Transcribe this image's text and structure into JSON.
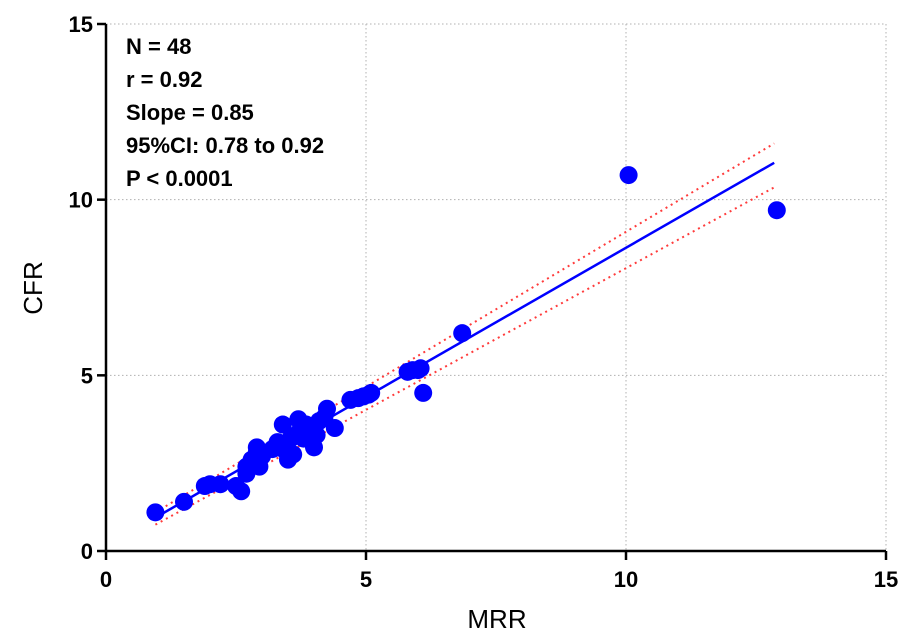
{
  "chart_data": {
    "type": "scatter",
    "xlabel": "MRR",
    "ylabel": "CFR",
    "xlim": [
      0,
      15
    ],
    "ylim": [
      0,
      15
    ],
    "x_ticks": [
      0,
      5,
      10,
      15
    ],
    "y_ticks": [
      0,
      5,
      10,
      15
    ],
    "grid": true,
    "annotations": [
      "N = 48",
      "r = 0.92",
      "Slope = 0.85",
      "95%CI: 0.78 to 0.92",
      "P < 0.0001"
    ],
    "points": [
      [
        0.95,
        1.1
      ],
      [
        1.5,
        1.4
      ],
      [
        1.9,
        1.85
      ],
      [
        2.0,
        1.9
      ],
      [
        2.2,
        1.9
      ],
      [
        2.5,
        1.85
      ],
      [
        2.6,
        1.7
      ],
      [
        2.7,
        2.2
      ],
      [
        2.7,
        2.4
      ],
      [
        2.8,
        2.6
      ],
      [
        2.85,
        2.5
      ],
      [
        2.9,
        2.8
      ],
      [
        2.9,
        2.95
      ],
      [
        2.95,
        2.4
      ],
      [
        3.0,
        2.7
      ],
      [
        3.2,
        2.9
      ],
      [
        3.3,
        3.1
      ],
      [
        3.35,
        3.0
      ],
      [
        3.4,
        3.6
      ],
      [
        3.45,
        2.85
      ],
      [
        3.5,
        2.6
      ],
      [
        3.55,
        3.2
      ],
      [
        3.6,
        2.75
      ],
      [
        3.65,
        3.3
      ],
      [
        3.7,
        3.75
      ],
      [
        3.75,
        3.5
      ],
      [
        3.8,
        3.2
      ],
      [
        3.85,
        3.6
      ],
      [
        3.9,
        3.4
      ],
      [
        4.0,
        2.95
      ],
      [
        4.05,
        3.3
      ],
      [
        4.1,
        3.7
      ],
      [
        4.2,
        3.8
      ],
      [
        4.25,
        4.05
      ],
      [
        4.4,
        3.5
      ],
      [
        4.7,
        4.3
      ],
      [
        4.85,
        4.35
      ],
      [
        4.95,
        4.4
      ],
      [
        5.05,
        4.45
      ],
      [
        5.1,
        4.5
      ],
      [
        5.8,
        5.1
      ],
      [
        5.9,
        5.15
      ],
      [
        6.0,
        5.15
      ],
      [
        6.05,
        5.2
      ],
      [
        6.1,
        4.5
      ],
      [
        6.85,
        6.2
      ],
      [
        10.05,
        10.7
      ],
      [
        12.9,
        9.7
      ]
    ],
    "fit": {
      "color": "#0000ff",
      "x_range": [
        0.95,
        12.85
      ],
      "y_range": [
        0.95,
        11.05
      ]
    },
    "ci_band": {
      "color": "#ff3b3b",
      "upper": {
        "x_range": [
          0.95,
          12.85
        ],
        "y_range": [
          1.1,
          11.6
        ]
      },
      "lower": {
        "x_range": [
          0.95,
          12.85
        ],
        "y_range": [
          0.75,
          10.35
        ]
      }
    },
    "marker_color": "#0000ff"
  }
}
